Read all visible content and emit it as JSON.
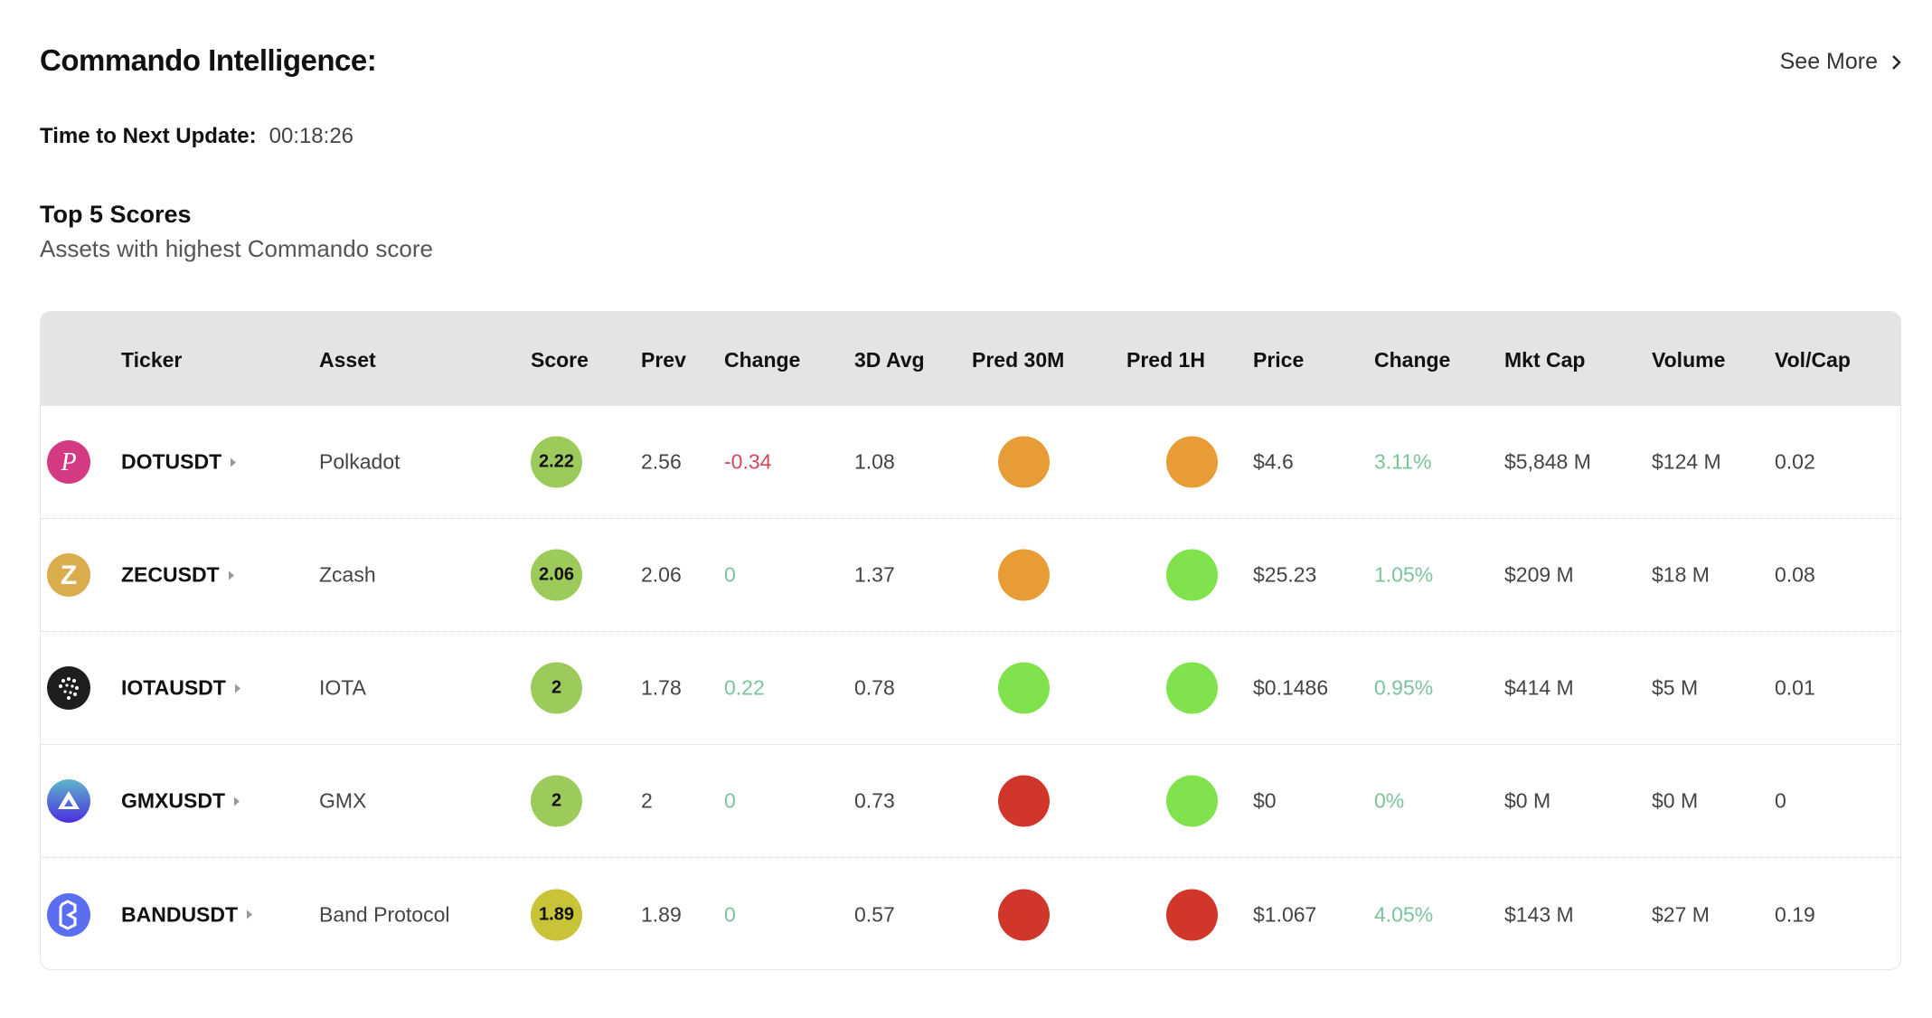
{
  "header": {
    "title": "Commando Intelligence:",
    "see_more": "See More",
    "timer_label": "Time to Next Update:",
    "timer_value": "00:18:26"
  },
  "section": {
    "title": "Top 5 Scores",
    "subtitle": "Assets with highest Commando score"
  },
  "colors": {
    "score_green": "#9dcb5b",
    "score_yellow": "#c9c338",
    "pred_orange": "#e89c36",
    "pred_green": "#80e24c",
    "pred_red": "#d1362a",
    "change_pos": "#7cc49a",
    "change_neg": "#d0485a"
  },
  "table": {
    "columns": [
      "Ticker",
      "Asset",
      "Score",
      "Prev",
      "Change",
      "3D Avg",
      "Pred 30M",
      "Pred 1H",
      "Price",
      "Change",
      "Mkt Cap",
      "Volume",
      "Vol/Cap"
    ],
    "rows": [
      {
        "icon": "polkadot-icon",
        "ticker": "DOTUSDT",
        "asset": "Polkadot",
        "score": "2.22",
        "score_color": "green",
        "prev": "2.56",
        "change": "-0.34",
        "change_dir": "neg",
        "avg3d": "1.08",
        "pred30m": "orange",
        "pred1h": "orange",
        "price": "$4.6",
        "pchange": "3.11%",
        "mktcap": "$5,848 M",
        "volume": "$124 M",
        "volcap": "0.02"
      },
      {
        "icon": "zcash-icon",
        "ticker": "ZECUSDT",
        "asset": "Zcash",
        "score": "2.06",
        "score_color": "green",
        "prev": "2.06",
        "change": "0",
        "change_dir": "pos",
        "avg3d": "1.37",
        "pred30m": "orange",
        "pred1h": "green",
        "price": "$25.23",
        "pchange": "1.05%",
        "mktcap": "$209 M",
        "volume": "$18 M",
        "volcap": "0.08"
      },
      {
        "icon": "iota-icon",
        "ticker": "IOTAUSDT",
        "asset": "IOTA",
        "score": "2",
        "score_color": "green",
        "prev": "1.78",
        "change": "0.22",
        "change_dir": "pos",
        "avg3d": "0.78",
        "pred30m": "green",
        "pred1h": "green",
        "price": "$0.1486",
        "pchange": "0.95%",
        "mktcap": "$414 M",
        "volume": "$5 M",
        "volcap": "0.01"
      },
      {
        "icon": "gmx-icon",
        "ticker": "GMXUSDT",
        "asset": "GMX",
        "score": "2",
        "score_color": "green",
        "prev": "2",
        "change": "0",
        "change_dir": "pos",
        "avg3d": "0.73",
        "pred30m": "red",
        "pred1h": "green",
        "price": "$0",
        "pchange": "0%",
        "mktcap": "$0 M",
        "volume": "$0 M",
        "volcap": "0"
      },
      {
        "icon": "band-protocol-icon",
        "ticker": "BANDUSDT",
        "asset": "Band Protocol",
        "score": "1.89",
        "score_color": "yellow",
        "prev": "1.89",
        "change": "0",
        "change_dir": "pos",
        "avg3d": "0.57",
        "pred30m": "red",
        "pred1h": "red",
        "price": "$1.067",
        "pchange": "4.05%",
        "mktcap": "$143 M",
        "volume": "$27 M",
        "volcap": "0.19"
      }
    ]
  }
}
